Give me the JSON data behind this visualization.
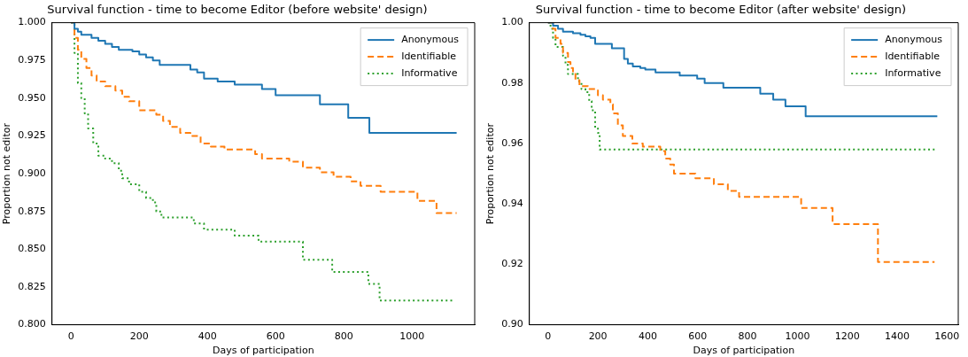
{
  "chart_data": [
    {
      "type": "step",
      "title": "Survival function - time to become Editor (before website' design)",
      "xlabel": "Days of participation",
      "ylabel": "Proportion not editor",
      "xlim": [
        -56,
        1184
      ],
      "xticks": [
        0,
        200,
        400,
        600,
        800,
        1000
      ],
      "ylim": [
        0.8,
        1.0
      ],
      "yticks": [
        {
          "value": 0.8,
          "label": "0.800"
        },
        {
          "value": 0.825,
          "label": "0.825"
        },
        {
          "value": 0.85,
          "label": "0.850"
        },
        {
          "value": 0.875,
          "label": "0.875"
        },
        {
          "value": 0.9,
          "label": "0.900"
        },
        {
          "value": 0.925,
          "label": "0.925"
        },
        {
          "value": 0.95,
          "label": "0.950"
        },
        {
          "value": 0.975,
          "label": "0.975"
        },
        {
          "value": 1.0,
          "label": "1.000"
        }
      ],
      "grid": false,
      "legend": "top right",
      "marker": "none",
      "series": [
        {
          "name": "Anonymous",
          "color": "#1f77b4",
          "line_style": "solid",
          "x": [
            0,
            10,
            20,
            30,
            60,
            80,
            100,
            120,
            140,
            180,
            200,
            220,
            240,
            260,
            350,
            370,
            390,
            430,
            480,
            560,
            600,
            730,
            813,
            875,
            1131
          ],
          "values": [
            1.0,
            0.996,
            0.994,
            0.992,
            0.99,
            0.988,
            0.986,
            0.984,
            0.982,
            0.981,
            0.979,
            0.977,
            0.975,
            0.972,
            0.969,
            0.967,
            0.963,
            0.961,
            0.959,
            0.956,
            0.952,
            0.946,
            0.937,
            0.927,
            0.927
          ]
        },
        {
          "name": "Identifiable",
          "color": "#ff7f0e",
          "line_style": "dashed",
          "x": [
            0,
            10,
            20,
            30,
            45,
            60,
            75,
            100,
            130,
            150,
            170,
            200,
            250,
            270,
            290,
            320,
            350,
            380,
            410,
            450,
            540,
            560,
            640,
            680,
            730,
            770,
            820,
            849,
            908,
            1016,
            1072,
            1131
          ],
          "values": [
            1.0,
            0.99,
            0.982,
            0.976,
            0.97,
            0.965,
            0.961,
            0.958,
            0.955,
            0.951,
            0.948,
            0.942,
            0.939,
            0.935,
            0.931,
            0.927,
            0.925,
            0.92,
            0.918,
            0.916,
            0.913,
            0.91,
            0.908,
            0.904,
            0.901,
            0.898,
            0.895,
            0.892,
            0.888,
            0.882,
            0.874,
            0.874
          ]
        },
        {
          "name": "Informative",
          "color": "#2ca02c",
          "line_style": "dotted",
          "x": [
            0,
            10,
            20,
            30,
            40,
            50,
            65,
            80,
            100,
            120,
            140,
            150,
            170,
            200,
            220,
            240,
            250,
            265,
            360,
            390,
            480,
            550,
            680,
            766,
            872,
            905,
            1123
          ],
          "values": [
            1.0,
            0.98,
            0.96,
            0.95,
            0.94,
            0.93,
            0.92,
            0.912,
            0.91,
            0.907,
            0.902,
            0.897,
            0.893,
            0.888,
            0.884,
            0.881,
            0.875,
            0.871,
            0.867,
            0.863,
            0.859,
            0.855,
            0.843,
            0.835,
            0.827,
            0.816,
            0.816
          ]
        }
      ]
    },
    {
      "type": "step",
      "title": "Survival function - time to become Editor (after website' design)",
      "xlabel": "Days of participation",
      "ylabel": "Proportion not editor",
      "xlim": [
        -75,
        1645
      ],
      "xticks": [
        0,
        200,
        400,
        600,
        800,
        1000,
        1200,
        1400,
        1600
      ],
      "ylim": [
        0.9,
        1.0
      ],
      "yticks": [
        {
          "value": 0.9,
          "label": "0.90"
        },
        {
          "value": 0.92,
          "label": "0.92"
        },
        {
          "value": 0.94,
          "label": "0.94"
        },
        {
          "value": 0.96,
          "label": "0.96"
        },
        {
          "value": 0.98,
          "label": "0.98"
        },
        {
          "value": 1.0,
          "label": "1.00"
        }
      ],
      "grid": false,
      "legend": "top right",
      "marker": "none",
      "series": [
        {
          "name": "Anonymous",
          "color": "#1f77b4",
          "line_style": "solid",
          "x": [
            0,
            20,
            40,
            60,
            100,
            130,
            150,
            170,
            189,
            256,
            305,
            320,
            340,
            370,
            390,
            431,
            528,
            598,
            628,
            703,
            851,
            903,
            952,
            1033,
            1561
          ],
          "values": [
            1.0,
            0.999,
            0.998,
            0.997,
            0.9965,
            0.996,
            0.9955,
            0.995,
            0.993,
            0.9915,
            0.988,
            0.9865,
            0.9855,
            0.985,
            0.9845,
            0.9835,
            0.9825,
            0.9815,
            0.98,
            0.9785,
            0.9765,
            0.9745,
            0.9723,
            0.969,
            0.969
          ]
        },
        {
          "name": "Identifiable",
          "color": "#ff7f0e",
          "line_style": "dashed",
          "x": [
            0,
            20,
            30,
            50,
            60,
            80,
            90,
            100,
            110,
            126,
            160,
            200,
            220,
            250,
            260,
            280,
            300,
            338,
            380,
            450,
            470,
            490,
            505,
            591,
            665,
            721,
            766,
            1015,
            1141,
            1323,
            1550
          ],
          "values": [
            1.0,
            0.998,
            0.995,
            0.993,
            0.99,
            0.987,
            0.985,
            0.983,
            0.981,
            0.979,
            0.978,
            0.976,
            0.9745,
            0.973,
            0.97,
            0.966,
            0.9625,
            0.96,
            0.959,
            0.9575,
            0.955,
            0.953,
            0.95,
            0.9485,
            0.9465,
            0.9443,
            0.9423,
            0.9387,
            0.9333,
            0.9208,
            0.9208
          ]
        },
        {
          "name": "Informative",
          "color": "#2ca02c",
          "line_style": "dotted",
          "x": [
            0,
            10,
            20,
            30,
            60,
            70,
            80,
            120,
            134,
            150,
            165,
            175,
            189,
            200,
            207,
            1550
          ],
          "values": [
            1.0,
            0.998,
            0.995,
            0.992,
            0.989,
            0.986,
            0.983,
            0.9805,
            0.978,
            0.977,
            0.974,
            0.971,
            0.965,
            0.9635,
            0.958,
            0.958
          ]
        }
      ]
    }
  ]
}
